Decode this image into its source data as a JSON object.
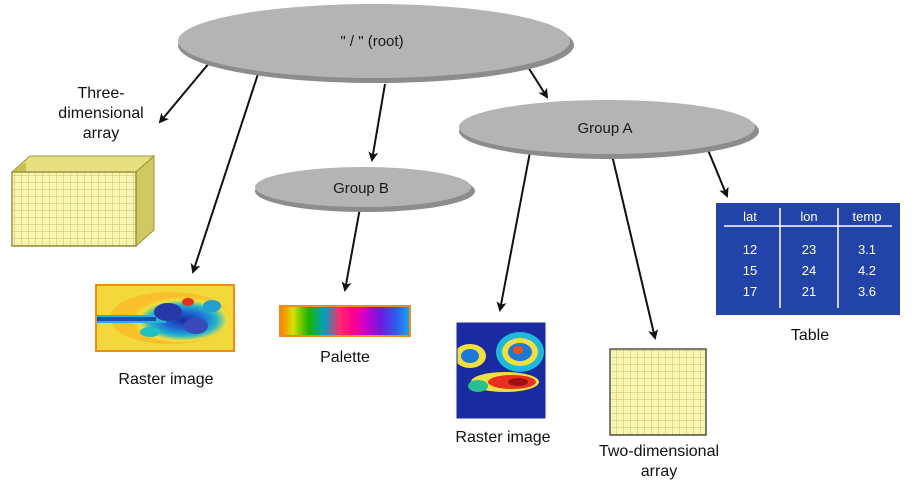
{
  "nodes": {
    "root": "\" / \" (root)",
    "group_a": "Group A",
    "group_b": "Group B"
  },
  "labels": {
    "three_d_array": [
      "Three-",
      "dimensional",
      "array"
    ],
    "raster_image_left": "Raster image",
    "palette": "Palette",
    "raster_image_right": "Raster image",
    "two_d_array": [
      "Two-dimensional",
      "array"
    ],
    "table": "Table"
  },
  "table": {
    "headers": [
      "lat",
      "lon",
      "temp"
    ],
    "rows": [
      [
        "12",
        "23",
        "3.1"
      ],
      [
        "15",
        "24",
        "4.2"
      ],
      [
        "17",
        "21",
        "3.6"
      ]
    ]
  },
  "colors": {
    "ellipse_fill": "#b4b4b4",
    "ellipse_shadow": "#8c8c8c",
    "array_fill": "#fbf5b2",
    "array_grid": "#c6c06c",
    "table_fill": "#2244a8",
    "arrow": "#111111"
  }
}
